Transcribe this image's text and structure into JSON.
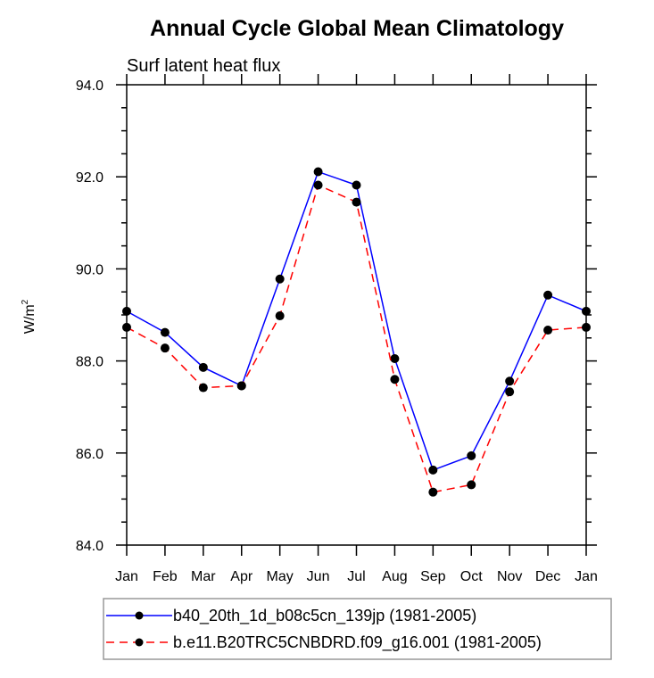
{
  "chart_data": {
    "type": "line",
    "title": "Annual Cycle Global Mean Climatology",
    "subtitle": "Surf latent heat flux",
    "xlabel": "",
    "ylabel": "W/m",
    "ylabel_superscript": "2",
    "categories": [
      "Jan",
      "Feb",
      "Mar",
      "Apr",
      "May",
      "Jun",
      "Jul",
      "Aug",
      "Sep",
      "Oct",
      "Nov",
      "Dec",
      "Jan"
    ],
    "ylim": [
      84.0,
      94.0
    ],
    "yticks": [
      84.0,
      86.0,
      88.0,
      90.0,
      92.0,
      94.0
    ],
    "ytick_labels": [
      "84.0",
      "86.0",
      "88.0",
      "90.0",
      "92.0",
      "94.0"
    ],
    "yminor_step": 0.5,
    "grid": false,
    "legend_position": "bottom",
    "series": [
      {
        "name": "b40_20th_1d_b08c5cn_139jp (1981-2005)",
        "color": "#0000ff",
        "dash": "solid",
        "marker": "filled-circle",
        "values": [
          89.08,
          88.62,
          87.86,
          87.46,
          89.78,
          92.11,
          91.82,
          88.05,
          85.63,
          85.94,
          87.56,
          89.43,
          89.08
        ]
      },
      {
        "name": "b.e11.B20TRC5CNBDRD.f09_g16.001 (1981-2005)",
        "color": "#ff0000",
        "dash": "dashed",
        "marker": "filled-circle",
        "values": [
          88.73,
          88.28,
          87.42,
          87.46,
          88.98,
          91.82,
          91.45,
          87.6,
          85.15,
          85.31,
          87.33,
          88.67,
          88.73
        ]
      }
    ]
  }
}
